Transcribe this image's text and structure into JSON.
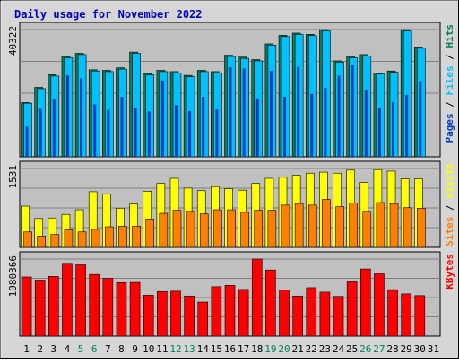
{
  "chart_data": {
    "type": "bar",
    "title": "Daily usage for November 2022",
    "x": [
      "1",
      "2",
      "3",
      "4",
      "5",
      "6",
      "7",
      "8",
      "9",
      "10",
      "11",
      "12",
      "13",
      "14",
      "15",
      "16",
      "17",
      "18",
      "19",
      "20",
      "21",
      "22",
      "23",
      "24",
      "25",
      "26",
      "27",
      "28",
      "29",
      "30",
      "31"
    ],
    "weekend_days": [
      "5",
      "6",
      "12",
      "13",
      "19",
      "20",
      "26",
      "27"
    ],
    "panels": [
      {
        "name": "pages-files-hits",
        "right_label": [
          "Pages",
          "Files",
          "Hits"
        ],
        "max_tick": "40322",
        "ymax": 40322,
        "series": [
          {
            "name": "Hits",
            "color": "#00805c",
            "values": [
              17200,
              22000,
              26000,
              31800,
              32800,
              27600,
              27400,
              28200,
              33200,
              26400,
              27400,
              27000,
              25800,
              27400,
              27000,
              32200,
              31600,
              30800,
              35800,
              38500,
              39200,
              38800,
              40300,
              30400,
              31800,
              32400,
              26600,
              27200,
              40300,
              34800,
              0
            ]
          },
          {
            "name": "Files",
            "color": "#00c0ff",
            "values": [
              17000,
              21600,
              25600,
              31400,
              32400,
              27200,
              27000,
              27800,
              32800,
              26000,
              27000,
              26600,
              25400,
              27000,
              26600,
              31800,
              31200,
              30400,
              35400,
              38100,
              38800,
              38400,
              39900,
              30000,
              31400,
              32000,
              26200,
              26800,
              39900,
              34400,
              0
            ]
          },
          {
            "name": "Pages",
            "color": "#0040c0",
            "values": [
              9600,
              15200,
              18400,
              25800,
              24800,
              16600,
              14900,
              19000,
              15400,
              14400,
              24200,
              16400,
              14500,
              19000,
              15000,
              28400,
              28000,
              18500,
              27200,
              19000,
              28500,
              20000,
              21800,
              25700,
              29000,
              21300,
              15300,
              17400,
              19600,
              24000,
              0
            ]
          }
        ]
      },
      {
        "name": "visits-sites",
        "right_label": [
          "Sites",
          "Visits"
        ],
        "max_tick": "1531",
        "ymax": 1531,
        "series": [
          {
            "name": "Visits",
            "color": "#ffff00",
            "values": [
              800,
              560,
              570,
              640,
              730,
              1080,
              1040,
              760,
              840,
              1090,
              1240,
              1340,
              1150,
              1100,
              1180,
              1140,
              1110,
              1240,
              1340,
              1360,
              1400,
              1440,
              1460,
              1440,
              1500,
              1260,
              1510,
              1480,
              1330,
              1330,
              0
            ]
          },
          {
            "name": "Sites",
            "color": "#ff8000",
            "values": [
              300,
              220,
              250,
              340,
              300,
              350,
              400,
              410,
              410,
              550,
              660,
              720,
              700,
              650,
              730,
              730,
              680,
              720,
              720,
              820,
              850,
              820,
              930,
              790,
              860,
              700,
              870,
              850,
              770,
              760,
              0
            ]
          }
        ]
      },
      {
        "name": "kbytes",
        "right_label": [
          "KBytes"
        ],
        "max_tick": "1980366",
        "ymax": 1980366,
        "series": [
          {
            "name": "KBytes",
            "color": "#ff0000",
            "values": [
              1520000,
              1440000,
              1535000,
              1870000,
              1830000,
              1585000,
              1485000,
              1375000,
              1380000,
              1050000,
              1145000,
              1155000,
              1030000,
              875000,
              1270000,
              1305000,
              1200000,
              1980000,
              1700000,
              1180000,
              1030000,
              1245000,
              1130000,
              1020000,
              1395000,
              1725000,
              1600000,
              1195000,
              1085000,
              1040000,
              0
            ]
          }
        ]
      }
    ]
  }
}
